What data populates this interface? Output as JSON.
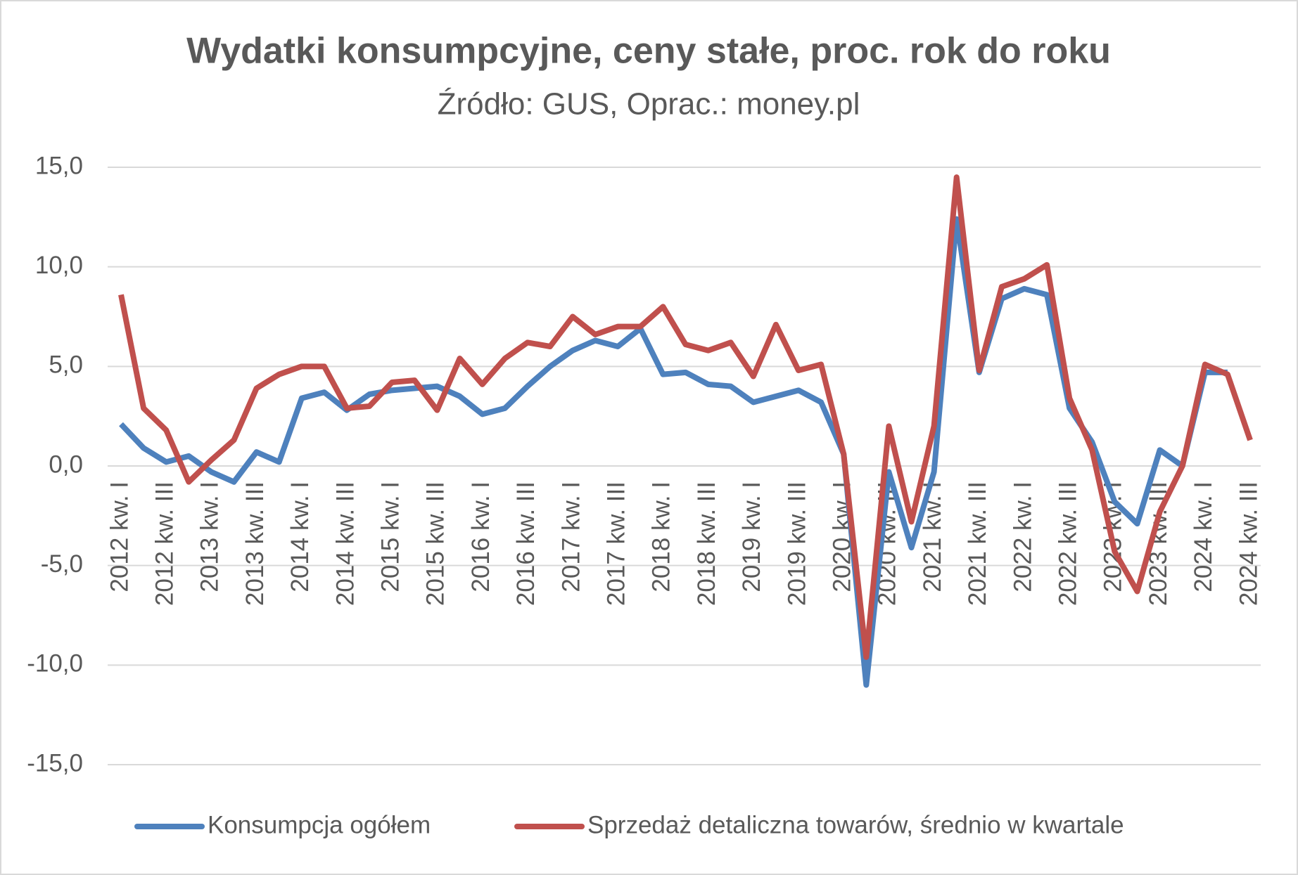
{
  "chart_data": {
    "type": "line",
    "title": "Wydatki konsumpcyjne, ceny stałe, proc. rok do roku",
    "subtitle": "Źródło: GUS, Oprac.: money.pl",
    "categories": [
      "2012 kw. I",
      null,
      "2012 kw. III",
      null,
      "2013 kw. I",
      null,
      "2013 kw. III",
      null,
      "2014 kw. I",
      null,
      "2014 kw. III",
      null,
      "2015 kw. I",
      null,
      "2015 kw. III",
      null,
      "2016 kw. I",
      null,
      "2016 kw. III",
      null,
      "2017 kw. I",
      null,
      "2017 kw. III",
      null,
      "2018 kw. I",
      null,
      "2018 kw. III",
      null,
      "2019 kw. I",
      null,
      "2019 kw. III",
      null,
      "2020 kw. I",
      null,
      "2020 kw. III",
      null,
      "2021 kw. I",
      null,
      "2021 kw. III",
      null,
      "2022 kw. I",
      null,
      "2022 kw. III",
      null,
      "2023 kw. I",
      null,
      "2023 kw. III",
      null,
      "2024 kw. I",
      null,
      "2024 kw. III"
    ],
    "series": [
      {
        "name": "Konsumpcja ogółem",
        "color": "#4e81bd",
        "values": [
          2.1,
          0.9,
          0.2,
          0.5,
          -0.3,
          -0.8,
          0.7,
          0.2,
          3.4,
          3.7,
          2.8,
          3.6,
          3.8,
          3.9,
          4.0,
          3.5,
          2.6,
          2.9,
          4.0,
          5.0,
          5.8,
          6.3,
          6.0,
          6.9,
          4.6,
          4.7,
          4.1,
          4.0,
          3.2,
          3.5,
          3.8,
          3.2,
          0.6,
          -11.0,
          -0.3,
          -4.1,
          -0.3,
          12.4,
          4.7,
          8.4,
          8.9,
          8.6,
          2.9,
          1.2,
          -1.8,
          -2.9,
          0.8,
          0.0,
          4.7,
          4.7,
          null
        ]
      },
      {
        "name": "Sprzedaż detaliczna towarów, średnio w kwartale",
        "color": "#c0504d",
        "values": [
          8.6,
          2.9,
          1.8,
          -0.8,
          0.3,
          1.3,
          3.9,
          4.6,
          5.0,
          5.0,
          2.9,
          3.0,
          4.2,
          4.3,
          2.8,
          5.4,
          4.1,
          5.4,
          6.2,
          6.0,
          7.5,
          6.6,
          7.0,
          7.0,
          8.0,
          6.1,
          5.8,
          6.2,
          4.5,
          7.1,
          4.8,
          5.1,
          0.6,
          -9.6,
          2.0,
          -2.8,
          2.0,
          14.5,
          4.8,
          9.0,
          9.4,
          10.1,
          3.4,
          0.8,
          -4.3,
          -6.3,
          -2.3,
          0.0,
          5.1,
          4.6,
          1.3
        ]
      }
    ],
    "ylim": [
      -15,
      15
    ],
    "yticks": [
      {
        "value": -15,
        "label": "-15,0"
      },
      {
        "value": -10,
        "label": "-10,0"
      },
      {
        "value": -5,
        "label": "-5,0"
      },
      {
        "value": 0,
        "label": "0,0"
      },
      {
        "value": 5,
        "label": "5,0"
      },
      {
        "value": 10,
        "label": "10,0"
      },
      {
        "value": 15,
        "label": "15,0"
      }
    ],
    "grid": true,
    "legend": "bottom"
  }
}
